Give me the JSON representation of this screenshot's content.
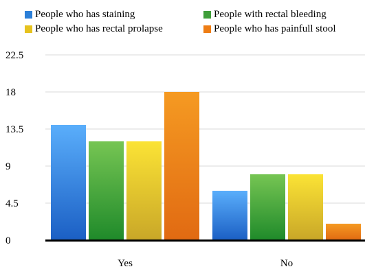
{
  "chart_data": {
    "type": "bar",
    "title": "",
    "xlabel": "",
    "ylabel": "",
    "categories": [
      "Yes",
      "No"
    ],
    "series": [
      {
        "name": "People who has staining",
        "values": [
          14,
          6
        ],
        "color": "#2b7fd8",
        "color_light": "#5aaefb",
        "color_dark": "#1b5fc4"
      },
      {
        "name": "People with rectal bleeding",
        "values": [
          12,
          8
        ],
        "color": "#3f9e3a",
        "color_light": "#76c553",
        "color_dark": "#1f8a2a"
      },
      {
        "name": "People who has rectal prolapse",
        "values": [
          12,
          8
        ],
        "color": "#e6c21e",
        "color_light": "#fbe335",
        "color_dark": "#c9a728"
      },
      {
        "name": "People who has painfull stool",
        "values": [
          18,
          2
        ],
        "color": "#ee7d14",
        "color_light": "#f59a22",
        "color_dark": "#e16a12"
      }
    ],
    "ylim": [
      0,
      22.5
    ],
    "yticks": [
      "0",
      "4.5",
      "9",
      "13.5",
      "18",
      "22.5"
    ],
    "grid": true,
    "legend_position": "top"
  }
}
